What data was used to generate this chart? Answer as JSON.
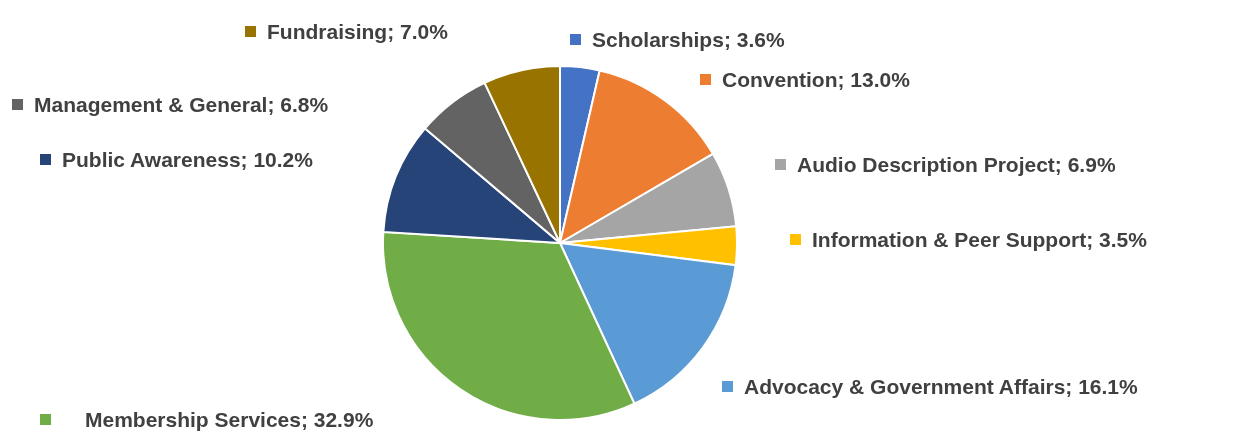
{
  "chart_data": {
    "type": "pie",
    "categories": [
      "Scholarships",
      "Convention",
      "Audio Description Project",
      "Information & Peer Support",
      "Advocacy & Government Affairs",
      "Membership Services",
      "Public Awareness",
      "Management & General",
      "Fundraising"
    ],
    "values": [
      3.6,
      13.0,
      6.9,
      3.5,
      16.1,
      32.9,
      10.2,
      6.8,
      7.0
    ],
    "value_labels": [
      "3.6%",
      "13.0%",
      "6.9%",
      "3.5%",
      "16.1%",
      "32.9%",
      "10.2%",
      "6.8%",
      "7.0%"
    ],
    "legend": "right",
    "colors": [
      "#4472c4",
      "#ed7d31",
      "#a5a5a5",
      "#ffc000",
      "#5b9bd5",
      "#70ad47",
      "#264478",
      "#636363",
      "#997300"
    ]
  }
}
